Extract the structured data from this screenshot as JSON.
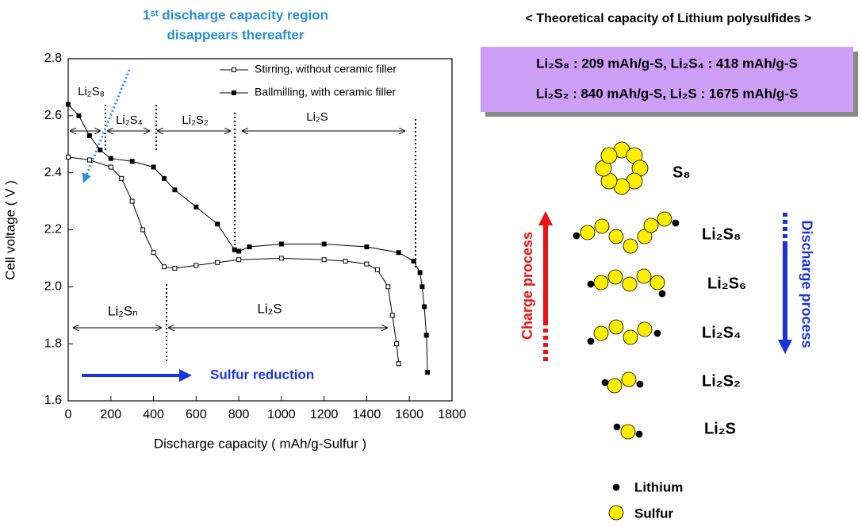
{
  "chart_data": {
    "type": "line",
    "x_label": "Discharge capacity ( mAh/g-Sulfur )",
    "y_label": "Cell voltage ( V )",
    "xlim": [
      0,
      1800
    ],
    "xticks": [
      0,
      200,
      400,
      600,
      800,
      1000,
      1200,
      1400,
      1600,
      1800
    ],
    "ylim": [
      1.6,
      2.8
    ],
    "yticks": [
      1.6,
      1.8,
      {
        "value": 2,
        "label": "2.0"
      },
      2.2,
      2.4,
      2.6,
      2.8
    ],
    "series": [
      {
        "name": "Stirring, without ceramic filler",
        "color": "#000000",
        "marker": "open-square",
        "x": [
          0,
          100,
          200,
          250,
          300,
          350,
          400,
          450,
          500,
          600,
          700,
          800,
          1000,
          1200,
          1300,
          1400,
          1450,
          1500,
          1520,
          1540,
          1550
        ],
        "values": [
          2.455,
          2.445,
          2.42,
          2.38,
          2.3,
          2.2,
          2.12,
          2.07,
          2.065,
          2.075,
          2.085,
          2.095,
          2.1,
          2.095,
          2.09,
          2.08,
          2.06,
          2.0,
          1.9,
          1.8,
          1.73
        ]
      },
      {
        "name": "Ballmilling, with ceramic filler",
        "color": "#000000",
        "marker": "filled-square",
        "x": [
          0,
          50,
          100,
          150,
          200,
          300,
          400,
          450,
          500,
          600,
          700,
          780,
          800,
          850,
          1000,
          1200,
          1400,
          1550,
          1620,
          1650,
          1660,
          1670,
          1680,
          1685
        ],
        "values": [
          2.64,
          2.6,
          2.53,
          2.48,
          2.45,
          2.44,
          2.42,
          2.38,
          2.34,
          2.28,
          2.22,
          2.13,
          2.125,
          2.14,
          2.15,
          2.15,
          2.14,
          2.12,
          2.09,
          2.05,
          2.0,
          1.93,
          1.83,
          1.7
        ]
      }
    ],
    "annotations": [
      "1ˢᵗ discharge capacity region",
      "disappears thereafter",
      "Li₂S₈",
      "Li₂S₄",
      "Li₂S₂",
      "Li₂S",
      "Li₂Sₙ",
      "Li₂S",
      "Sulfur reduction"
    ]
  },
  "theoretical_capacity": {
    "title": "< Theoretical capacity of Lithium polysulfides >",
    "rows": [
      "Li₂S₈ :  209 mAh/g-S,  Li₂S₄ :  418 mAh/g-S",
      "Li₂S₂ :  840  mAh/g-S, Li₂S  :  1675 mAh/g-S"
    ]
  },
  "diagram": {
    "species": [
      "S₈",
      "Li₂S₈",
      "Li₂S₆",
      "Li₂S₄",
      "Li₂S₂",
      "Li₂S"
    ],
    "charge_label": "Charge process",
    "discharge_label": "Discharge process",
    "legend": [
      "Lithium",
      "Sulfur"
    ]
  }
}
